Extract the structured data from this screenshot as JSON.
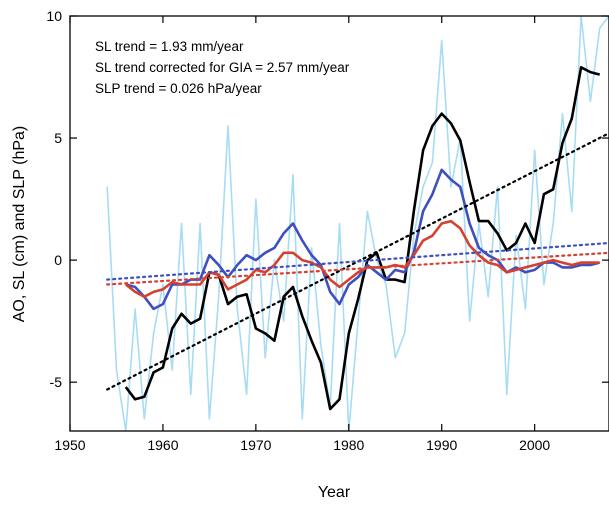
{
  "chart_data": {
    "type": "line",
    "title": "",
    "xlabel": "Year",
    "ylabel": "AO, SL (cm) and SLP (hPa)",
    "xlim": [
      1950,
      2008
    ],
    "ylim": [
      -7,
      10
    ],
    "xticks": [
      1950,
      1960,
      1970,
      1980,
      1990,
      2000
    ],
    "yticks": [
      -5,
      0,
      5,
      10
    ],
    "grid": false,
    "legend": "none",
    "annotations": [
      "SL trend = 1.93 mm/year",
      "SL trend corrected for GIA = 2.57 mm/year",
      "SLP trend = 0.026 hPa/year"
    ],
    "series": [
      {
        "color": "#a8dcf4",
        "style": "solid",
        "x": [
          1954,
          1955,
          1956,
          1957,
          1958,
          1959,
          1960,
          1961,
          1962,
          1963,
          1964,
          1965,
          1966,
          1967,
          1968,
          1969,
          1970,
          1971,
          1972,
          1973,
          1974,
          1975,
          1976,
          1977,
          1978,
          1979,
          1980,
          1981,
          1982,
          1983,
          1984,
          1985,
          1986,
          1987,
          1988,
          1989,
          1990,
          1991,
          1992,
          1993,
          1994,
          1995,
          1996,
          1997,
          1998,
          1999,
          2000,
          2001,
          2002,
          2003,
          2004,
          2005,
          2006,
          2007,
          2008
        ],
        "y": [
          3.0,
          -4.5,
          -7,
          -2.0,
          -6.5,
          -3.0,
          -1.0,
          -4.5,
          1.5,
          -5.5,
          1.5,
          -6.5,
          -1.5,
          5.5,
          -2.0,
          -5.5,
          2.5,
          -4.0,
          0.0,
          -2.5,
          3.5,
          -6.5,
          0.5,
          -3.5,
          -6.0,
          1.5,
          -7,
          -2.5,
          2.0,
          0.0,
          -1.0,
          -4.0,
          -3.0,
          1.0,
          3.0,
          4.0,
          9.0,
          3.0,
          5.0,
          -2.5,
          1.5,
          -1.5,
          3.0,
          -5.5,
          1.0,
          -2.0,
          4.5,
          -1.0,
          1.5,
          6.0,
          2.0,
          10,
          6.5,
          9.5,
          10
        ]
      },
      {
        "color": "#000000",
        "style": "solid",
        "x": [
          1956,
          1957,
          1958,
          1959,
          1960,
          1961,
          1962,
          1963,
          1964,
          1965,
          1966,
          1967,
          1968,
          1969,
          1970,
          1971,
          1972,
          1973,
          1974,
          1975,
          1976,
          1977,
          1978,
          1979,
          1980,
          1981,
          1982,
          1983,
          1984,
          1985,
          1986,
          1987,
          1988,
          1989,
          1990,
          1991,
          1992,
          1993,
          1994,
          1995,
          1996,
          1997,
          1998,
          1999,
          2000,
          2001,
          2002,
          2003,
          2004,
          2005,
          2006,
          2007
        ],
        "y": [
          -5.2,
          -5.7,
          -5.6,
          -4.6,
          -4.4,
          -2.8,
          -2.2,
          -2.6,
          -2.4,
          -0.5,
          -0.6,
          -1.8,
          -1.5,
          -1.4,
          -2.8,
          -3.0,
          -3.3,
          -1.5,
          -1.1,
          -2.3,
          -3.3,
          -4.2,
          -6.1,
          -5.7,
          -3.0,
          -1.6,
          0.0,
          0.3,
          -0.8,
          -0.8,
          -0.9,
          2.0,
          4.5,
          5.5,
          6.0,
          5.6,
          4.9,
          3.2,
          1.6,
          1.6,
          1.1,
          0.4,
          0.7,
          1.5,
          0.7,
          2.7,
          2.9,
          4.8,
          5.8,
          7.9,
          7.7,
          7.6
        ]
      },
      {
        "color": "#3f4fbf",
        "style": "solid",
        "x": [
          1956,
          1957,
          1958,
          1959,
          1960,
          1961,
          1962,
          1963,
          1964,
          1965,
          1966,
          1967,
          1968,
          1969,
          1970,
          1971,
          1972,
          1973,
          1974,
          1975,
          1976,
          1977,
          1978,
          1979,
          1980,
          1981,
          1982,
          1983,
          1984,
          1985,
          1986,
          1987,
          1988,
          1989,
          1990,
          1991,
          1992,
          1993,
          1994,
          1995,
          1996,
          1997,
          1998,
          1999,
          2000,
          2001,
          2002,
          2003,
          2004,
          2005,
          2006,
          2007
        ],
        "y": [
          -1.0,
          -1.1,
          -1.5,
          -2.0,
          -1.8,
          -1.0,
          -1.0,
          -0.8,
          -0.8,
          0.2,
          -0.2,
          -0.7,
          -0.2,
          0.2,
          0.0,
          0.3,
          0.5,
          1.1,
          1.5,
          0.8,
          0.2,
          -0.2,
          -1.3,
          -1.8,
          -1.0,
          -0.7,
          -0.2,
          -0.5,
          -0.8,
          -0.4,
          -0.5,
          0.3,
          2.0,
          2.7,
          3.7,
          3.3,
          3.0,
          1.5,
          0.5,
          0.2,
          0.0,
          -0.5,
          -0.3,
          -0.5,
          -0.4,
          -0.1,
          -0.1,
          -0.3,
          -0.3,
          -0.2,
          -0.2,
          -0.1
        ]
      },
      {
        "color": "#d6402e",
        "style": "solid",
        "x": [
          1956,
          1957,
          1958,
          1959,
          1960,
          1961,
          1962,
          1963,
          1964,
          1965,
          1966,
          1967,
          1968,
          1969,
          1970,
          1971,
          1972,
          1973,
          1974,
          1975,
          1976,
          1977,
          1978,
          1979,
          1980,
          1981,
          1982,
          1983,
          1984,
          1985,
          1986,
          1987,
          1988,
          1989,
          1990,
          1991,
          1992,
          1993,
          1994,
          1995,
          1996,
          1997,
          1998,
          1999,
          2000,
          2001,
          2002,
          2003,
          2004,
          2005,
          2006,
          2007
        ],
        "y": [
          -1.0,
          -1.3,
          -1.5,
          -1.3,
          -1.2,
          -0.9,
          -1.0,
          -1.0,
          -1.0,
          -0.5,
          -0.6,
          -1.2,
          -1.0,
          -0.8,
          -0.4,
          -0.5,
          -0.2,
          0.3,
          0.3,
          0.0,
          -0.1,
          -0.3,
          -0.8,
          -1.1,
          -0.8,
          -0.5,
          -0.3,
          -0.3,
          -0.3,
          -0.2,
          -0.3,
          0.2,
          0.8,
          1.0,
          1.5,
          1.6,
          1.3,
          0.6,
          0.2,
          -0.1,
          -0.2,
          -0.5,
          -0.4,
          -0.3,
          -0.2,
          -0.1,
          0.0,
          -0.1,
          -0.2,
          -0.1,
          -0.1,
          -0.1
        ]
      },
      {
        "color": "#000000",
        "style": "dotted",
        "x": [
          1954,
          2008
        ],
        "y": [
          -5.3,
          5.2
        ]
      },
      {
        "color": "#3f4fbf",
        "style": "dotted",
        "x": [
          1954,
          2008
        ],
        "y": [
          -0.8,
          0.7
        ]
      },
      {
        "color": "#d6402e",
        "style": "dotted",
        "x": [
          1954,
          2008
        ],
        "y": [
          -1.0,
          0.3
        ]
      }
    ]
  }
}
